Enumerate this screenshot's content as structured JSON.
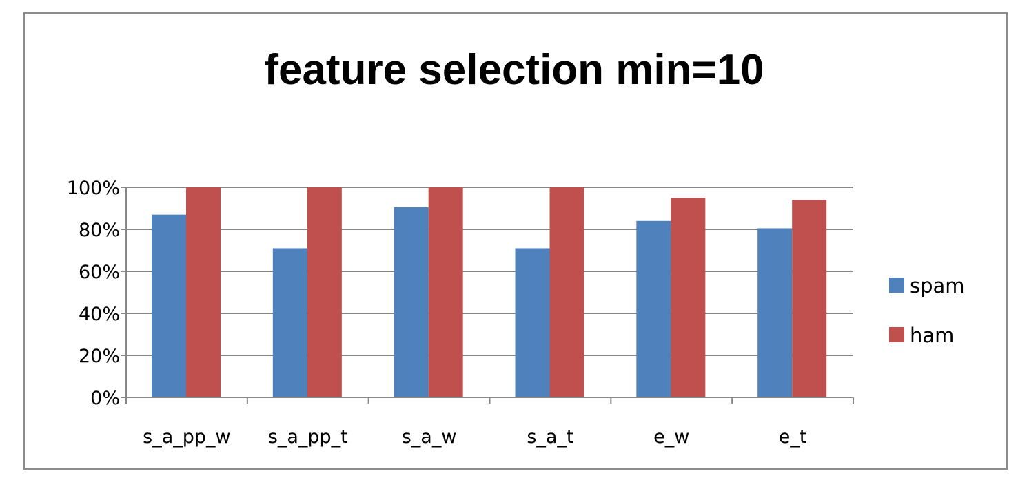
{
  "chart_data": {
    "type": "bar",
    "title": "feature selection min=10",
    "xlabel": "",
    "ylabel": "",
    "categories": [
      "s_a_pp_w",
      "s_a_pp_t",
      "s_a_w",
      "s_a_t",
      "e_w",
      "e_t"
    ],
    "series": [
      {
        "name": "spam",
        "values": [
          0.87,
          0.71,
          0.905,
          0.71,
          0.84,
          0.805
        ],
        "color": "#4F81BD"
      },
      {
        "name": "ham",
        "values": [
          1.0,
          1.0,
          1.0,
          1.0,
          0.95,
          0.94
        ],
        "color": "#C0504D"
      }
    ],
    "ylim": [
      0,
      1
    ],
    "yticks": [
      0,
      0.2,
      0.4,
      0.6,
      0.8,
      1.0
    ],
    "ytick_labels": [
      "0%",
      "20%",
      "40%",
      "60%",
      "80%",
      "100%"
    ],
    "grid": true,
    "legend_position": "right"
  }
}
